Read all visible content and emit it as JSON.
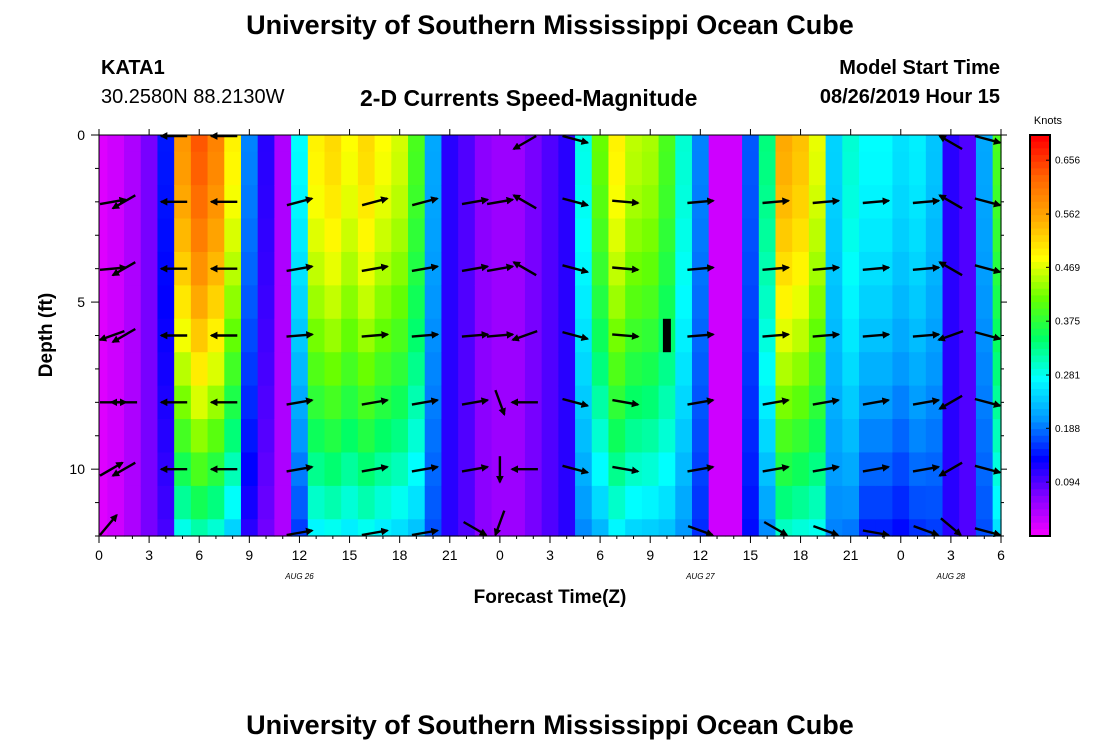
{
  "header": {
    "title": "University of Southern Mississippi Ocean Cube",
    "footer_title": "University of Southern Mississippi Ocean Cube",
    "station_id": "KATA1",
    "station_coords": "30.2580N 88.2130W",
    "model_start_label": "Model Start Time",
    "model_start_value": "08/26/2019 Hour 15"
  },
  "chart_data": {
    "type": "heatmap",
    "title": "2-D Currents Speed-Magnitude",
    "xlabel": "Forecast Time(Z)",
    "ylabel": "Depth (ft)",
    "x_tick_labels": [
      "0",
      "3",
      "6",
      "9",
      "12",
      "15",
      "18",
      "21",
      "0",
      "3",
      "6",
      "9",
      "12",
      "15",
      "18",
      "21",
      "0",
      "3",
      "6"
    ],
    "x_range_hours": [
      0,
      54
    ],
    "date_labels": [
      {
        "label": "AUG 26",
        "hour": 12
      },
      {
        "label": "AUG 27",
        "hour": 36
      },
      {
        "label": "AUG 28",
        "hour": 51
      }
    ],
    "y_tick_labels": [
      "0",
      "5",
      "10"
    ],
    "ylim": [
      0,
      12
    ],
    "y_reversed": true,
    "colorbar": {
      "unit_label": "Knots",
      "ticks": [
        "0.656",
        "0.562",
        "0.469",
        "0.375",
        "0.281",
        "0.188",
        "0.094"
      ],
      "range": [
        0.0,
        0.7
      ],
      "colors": [
        "#ff00ff",
        "#8c00ff",
        "#0000ff",
        "#0099ff",
        "#00ffff",
        "#00ff66",
        "#66ff00",
        "#ffff00",
        "#ffaa00",
        "#ff6600",
        "#ff0000"
      ]
    },
    "depths_ft": [
      0,
      1,
      2,
      3,
      4,
      5,
      6,
      7,
      8,
      9,
      10,
      11,
      12
    ],
    "surface_speed_by_hour": [
      0.02,
      0.03,
      0.05,
      0.08,
      0.15,
      0.58,
      0.64,
      0.6,
      0.5,
      0.2,
      0.12,
      0.05,
      0.28,
      0.5,
      0.52,
      0.49,
      0.52,
      0.49,
      0.47,
      0.4,
      0.22,
      0.12,
      0.1,
      0.07,
      0.06,
      0.06,
      0.08,
      0.1,
      0.12,
      0.29,
      0.42,
      0.5,
      0.46,
      0.45,
      0.4,
      0.3,
      0.2,
      0.03,
      0.03,
      0.18,
      0.34,
      0.56,
      0.54,
      0.48,
      0.25,
      0.3,
      0.28,
      0.28,
      0.26,
      0.27,
      0.24,
      0.12,
      0.1,
      0.22,
      0.4
    ],
    "bottom_factor_by_hour": [
      1,
      1,
      1,
      1,
      0.7,
      0.5,
      0.5,
      0.5,
      0.5,
      0.6,
      0.7,
      1,
      0.6,
      0.55,
      0.55,
      0.55,
      0.55,
      0.55,
      0.55,
      0.6,
      0.8,
      1,
      1,
      1,
      1,
      1,
      1,
      1,
      1,
      0.7,
      0.55,
      0.55,
      0.55,
      0.55,
      0.6,
      0.7,
      0.8,
      1,
      1,
      0.8,
      0.6,
      0.55,
      0.55,
      0.6,
      0.8,
      0.65,
      0.55,
      0.55,
      0.55,
      0.6,
      0.7,
      1,
      1,
      0.8,
      0.65
    ],
    "vector_hours": [
      0,
      1.5,
      4.5,
      7.5,
      12,
      16.5,
      19.5,
      22.5,
      24,
      25.5,
      28.5,
      31.5,
      36,
      40.5,
      43.5,
      46.5,
      49.5,
      51,
      54
    ],
    "vector_depths_ft": [
      0,
      2,
      4,
      6,
      8,
      10,
      12
    ],
    "vector_angles_deg": [
      [
        null,
        null,
        180,
        180,
        null,
        null,
        null,
        null,
        null,
        -150,
        -15,
        null,
        null,
        null,
        null,
        null,
        null,
        150,
        -15
      ],
      [
        10,
        -150,
        180,
        180,
        15,
        15,
        15,
        10,
        10,
        150,
        -15,
        -5,
        5,
        5,
        5,
        5,
        5,
        150,
        -15
      ],
      [
        5,
        -150,
        180,
        180,
        10,
        10,
        10,
        10,
        10,
        150,
        -15,
        -5,
        5,
        5,
        5,
        5,
        5,
        150,
        -15
      ],
      [
        -160,
        -150,
        180,
        180,
        5,
        5,
        5,
        5,
        5,
        -160,
        -15,
        -5,
        5,
        5,
        5,
        5,
        5,
        -160,
        -15
      ],
      [
        0,
        180,
        180,
        180,
        10,
        10,
        10,
        10,
        -70,
        180,
        -15,
        -10,
        10,
        10,
        10,
        10,
        10,
        -150,
        -15
      ],
      [
        30,
        -150,
        180,
        180,
        10,
        10,
        10,
        10,
        -90,
        180,
        -15,
        -10,
        10,
        10,
        10,
        10,
        10,
        -150,
        -15
      ],
      [
        50,
        null,
        null,
        null,
        10,
        10,
        10,
        -30,
        -110,
        null,
        null,
        null,
        -20,
        -30,
        -20,
        -10,
        -20,
        -40,
        -15
      ]
    ],
    "missing_marker": {
      "hour": 34,
      "depth_from_ft": 5.5,
      "depth_to_ft": 6.5
    }
  }
}
